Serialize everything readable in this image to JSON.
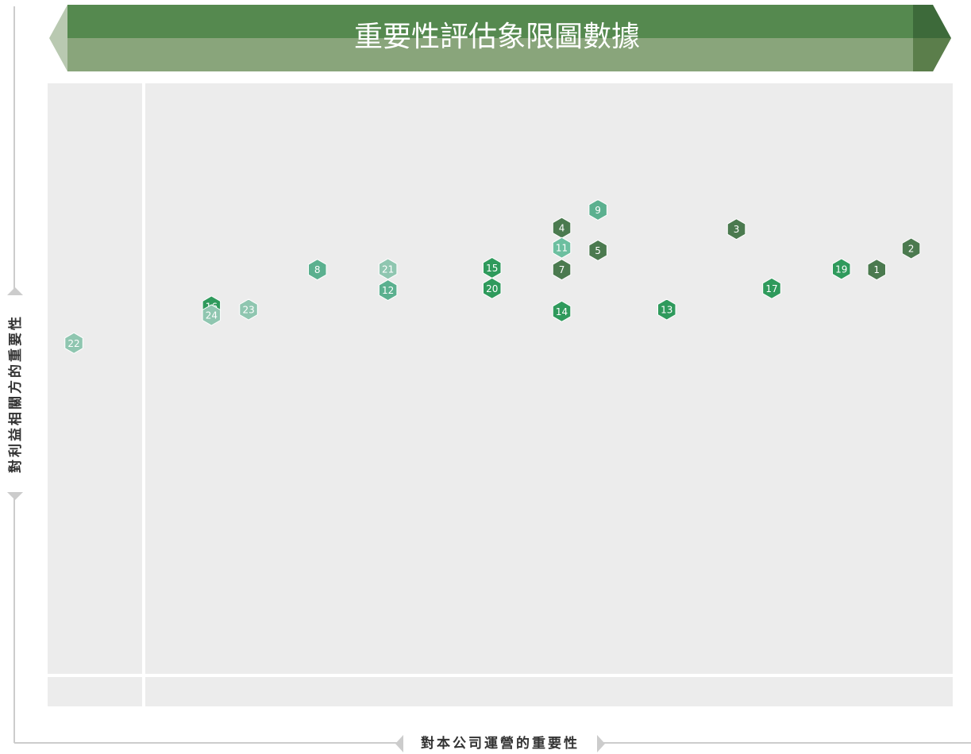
{
  "chart_data": {
    "type": "scatter",
    "title": "重要性評估象限圖數據",
    "x_label": "對本公司運營的重要性",
    "y_label": "對利益相關方的重要性",
    "xlim": [
      0,
      100
    ],
    "ylim": [
      0,
      100
    ],
    "points": [
      {
        "label": "22",
        "x": 2.9,
        "y": 58.3,
        "color": "#8fc6b0"
      },
      {
        "label": "16",
        "x": 18.1,
        "y": 64.2,
        "color": "#2f9a5c"
      },
      {
        "label": "24",
        "x": 18.1,
        "y": 62.8,
        "color": "#8fc6b0"
      },
      {
        "label": "23",
        "x": 22.2,
        "y": 63.7,
        "color": "#8fc6b0"
      },
      {
        "label": "8",
        "x": 29.8,
        "y": 70.1,
        "color": "#5bb08f"
      },
      {
        "label": "12",
        "x": 37.6,
        "y": 66.8,
        "color": "#5bb08f"
      },
      {
        "label": "21",
        "x": 37.6,
        "y": 70.2,
        "color": "#8fc6b0"
      },
      {
        "label": "15",
        "x": 49.1,
        "y": 70.4,
        "color": "#2f9a5c"
      },
      {
        "label": "20",
        "x": 49.1,
        "y": 67.1,
        "color": "#2f9a5c"
      },
      {
        "label": "14",
        "x": 56.8,
        "y": 63.4,
        "color": "#2f9a5c"
      },
      {
        "label": "7",
        "x": 56.8,
        "y": 70.1,
        "color": "#4b7a4f"
      },
      {
        "label": "4",
        "x": 56.8,
        "y": 76.8,
        "color": "#4b7a4f"
      },
      {
        "label": "11",
        "x": 56.8,
        "y": 73.6,
        "color": "#6cbfa0"
      },
      {
        "label": "5",
        "x": 60.8,
        "y": 73.2,
        "color": "#4b7a4f"
      },
      {
        "label": "9",
        "x": 60.8,
        "y": 79.7,
        "color": "#5bb08f"
      },
      {
        "label": "13",
        "x": 68.4,
        "y": 63.7,
        "color": "#2f9a5c"
      },
      {
        "label": "3",
        "x": 76.1,
        "y": 76.6,
        "color": "#4b7a4f"
      },
      {
        "label": "17",
        "x": 80.0,
        "y": 67.1,
        "color": "#2f9a5c"
      },
      {
        "label": "19",
        "x": 87.7,
        "y": 70.2,
        "color": "#2f9a5c"
      },
      {
        "label": "1",
        "x": 91.6,
        "y": 70.1,
        "color": "#4b7a4f"
      },
      {
        "label": "2",
        "x": 95.4,
        "y": 73.5,
        "color": "#4b7a4f"
      }
    ]
  }
}
